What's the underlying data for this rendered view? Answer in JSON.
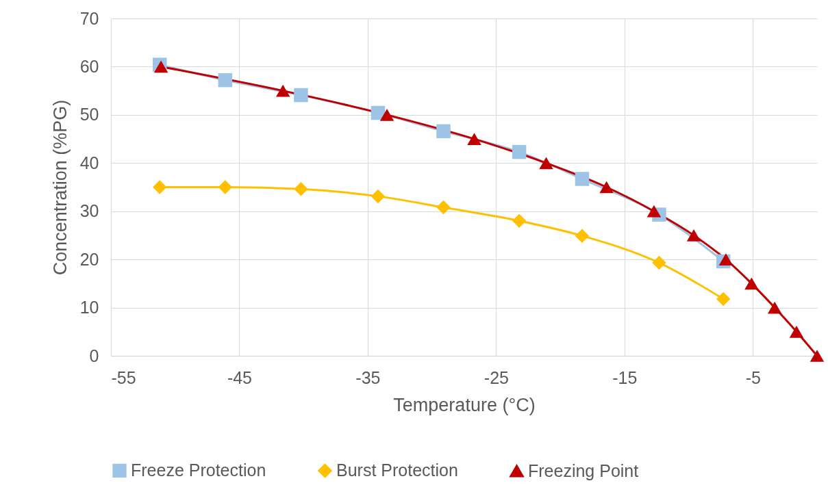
{
  "chart_data": {
    "type": "line",
    "xlabel": "Temperature (°C)",
    "ylabel": "Concentration (%PG)",
    "xlim": [
      -55,
      0
    ],
    "xticks": [
      -55,
      -45,
      -35,
      -25,
      -15,
      -5
    ],
    "ylim": [
      0,
      70
    ],
    "yticks": [
      0,
      10,
      20,
      30,
      40,
      50,
      60,
      70
    ],
    "grid": true,
    "legend": "bottom",
    "series": [
      {
        "name": "Freeze Protection",
        "color": "#9dc3e6",
        "marker": "square",
        "x": [
          -51.2,
          -46.1,
          -40.2,
          -34.2,
          -29.1,
          -23.2,
          -18.3,
          -12.3,
          -7.3
        ],
        "values": [
          60.4,
          57.2,
          54.1,
          50.4,
          46.6,
          42.3,
          36.7,
          29.3,
          19.6
        ]
      },
      {
        "name": "Burst Protection",
        "color": "#ffc000",
        "marker": "diamond",
        "x": [
          -51.2,
          -46.1,
          -40.2,
          -34.2,
          -29.1,
          -23.2,
          -18.3,
          -12.3,
          -7.3
        ],
        "values": [
          35,
          35,
          34.6,
          33.1,
          30.8,
          28,
          24.9,
          19.3,
          11.8
        ]
      },
      {
        "name": "Freezing Point",
        "color": "#c00000",
        "marker": "triangle",
        "x": [
          -51.1,
          -41.6,
          -33.5,
          -26.7,
          -21.1,
          -16.4,
          -12.7,
          -9.6,
          -7.1,
          -5.1,
          -3.3,
          -1.6,
          0
        ],
        "values": [
          60,
          55,
          50,
          45,
          40,
          35,
          30,
          25,
          20,
          15,
          10,
          5,
          0
        ]
      }
    ]
  }
}
